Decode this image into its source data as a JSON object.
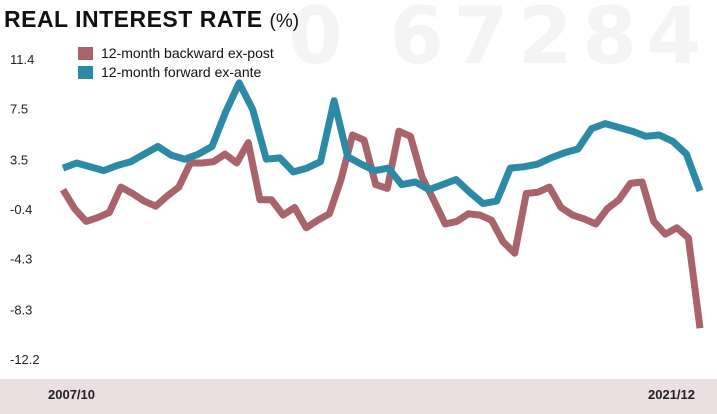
{
  "title": "REAL INTEREST RATE",
  "title_unit": "(%)",
  "watermark": "0 67284",
  "chart_data": {
    "type": "line",
    "title": "REAL INTEREST RATE (%)",
    "yticks": [
      11.4,
      7.5,
      3.5,
      -0.4,
      -4.3,
      -8.3,
      -12.2
    ],
    "ylim": [
      -12.2,
      11.4
    ],
    "x_start_label": "2007/10",
    "x_end_label": "2021/12",
    "legend_position": "top-left",
    "grid": false,
    "series": [
      {
        "name": "12-month backward ex-post",
        "color": "#a8636b",
        "values": [
          1.2,
          -0.3,
          -1.3,
          -1.0,
          -0.6,
          1.4,
          0.9,
          0.3,
          -0.1,
          0.7,
          1.4,
          3.3,
          3.3,
          3.4,
          4.0,
          3.3,
          4.9,
          0.4,
          0.4,
          -0.8,
          -0.2,
          -1.8,
          -1.2,
          -0.7,
          2.0,
          5.5,
          5.1,
          1.6,
          1.3,
          5.8,
          5.4,
          2.2,
          0.4,
          -1.5,
          -1.3,
          -0.7,
          -0.8,
          -1.2,
          -2.9,
          -3.8,
          0.9,
          1.0,
          1.4,
          -0.2,
          -0.8,
          -1.1,
          -1.5,
          -0.3,
          0.4,
          1.7,
          1.8,
          -1.3,
          -2.3,
          -1.8,
          -2.6,
          -9.7
        ]
      },
      {
        "name": "12-month forward ex-ante",
        "color": "#2c8aa6",
        "values": [
          2.9,
          3.3,
          3.0,
          2.7,
          3.1,
          3.4,
          4.0,
          4.6,
          3.9,
          3.6,
          4.0,
          4.6,
          7.3,
          9.6,
          7.5,
          3.6,
          3.7,
          2.6,
          2.9,
          3.4,
          8.2,
          3.8,
          3.2,
          2.7,
          2.9,
          1.6,
          1.8,
          1.2,
          1.6,
          2.0,
          1.0,
          0.1,
          0.3,
          2.9,
          3.0,
          3.2,
          3.7,
          4.1,
          4.4,
          6.0,
          6.4,
          6.1,
          5.8,
          5.4,
          5.5,
          5.0,
          4.0,
          1.1
        ]
      }
    ]
  }
}
